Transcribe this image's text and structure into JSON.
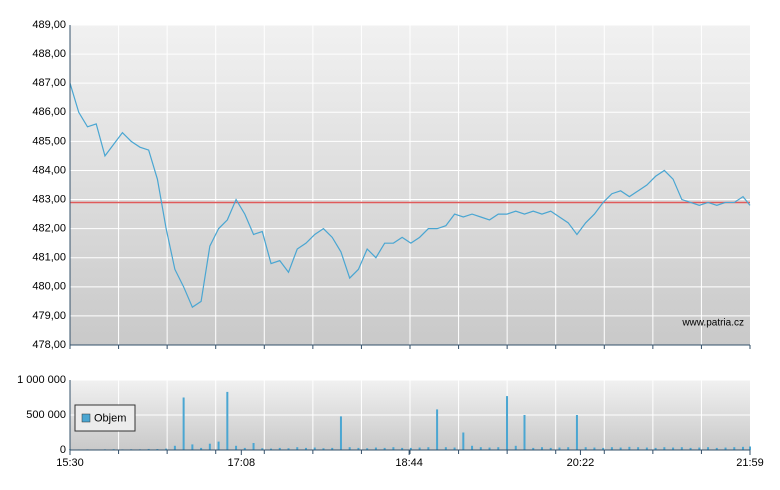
{
  "chart_data": [
    {
      "type": "line",
      "watermark": "www.patria.cz",
      "xlim": [
        "15:30",
        "21:59"
      ],
      "ylim": [
        478,
        489
      ],
      "yticks": [
        {
          "value": 478,
          "label": "478,00"
        },
        {
          "value": 479,
          "label": "479,00"
        },
        {
          "value": 480,
          "label": "480,00"
        },
        {
          "value": 481,
          "label": "481,00"
        },
        {
          "value": 482,
          "label": "482,00"
        },
        {
          "value": 483,
          "label": "483,00"
        },
        {
          "value": 484,
          "label": "484,00"
        },
        {
          "value": 485,
          "label": "485,00"
        },
        {
          "value": 486,
          "label": "486,00"
        },
        {
          "value": 487,
          "label": "487,00"
        },
        {
          "value": 488,
          "label": "488,00"
        },
        {
          "value": 489,
          "label": "489,00"
        }
      ],
      "grid": true,
      "reference_line": {
        "value": 482.9,
        "color": "#e05a5a"
      },
      "x": [
        "15:30",
        "15:35",
        "15:40",
        "15:45",
        "15:50",
        "15:55",
        "16:00",
        "16:05",
        "16:10",
        "16:15",
        "16:20",
        "16:25",
        "16:30",
        "16:35",
        "16:40",
        "16:45",
        "16:50",
        "16:55",
        "17:00",
        "17:05",
        "17:10",
        "17:15",
        "17:20",
        "17:25",
        "17:30",
        "17:35",
        "17:40",
        "17:45",
        "17:50",
        "17:55",
        "18:00",
        "18:05",
        "18:10",
        "18:15",
        "18:20",
        "18:25",
        "18:30",
        "18:35",
        "18:40",
        "18:45",
        "18:50",
        "18:55",
        "19:00",
        "19:05",
        "19:10",
        "19:15",
        "19:20",
        "19:25",
        "19:30",
        "19:35",
        "19:40",
        "19:45",
        "19:50",
        "19:55",
        "20:00",
        "20:05",
        "20:10",
        "20:15",
        "20:20",
        "20:25",
        "20:30",
        "20:35",
        "20:40",
        "20:45",
        "20:50",
        "20:55",
        "21:00",
        "21:05",
        "21:10",
        "21:15",
        "21:20",
        "21:25",
        "21:30",
        "21:35",
        "21:40",
        "21:45",
        "21:50",
        "21:55",
        "21:59"
      ],
      "series": [
        {
          "color": "#4aa6d2",
          "values": [
            487.0,
            486.0,
            485.5,
            485.6,
            484.5,
            484.9,
            485.3,
            485.0,
            484.8,
            484.7,
            483.7,
            482.0,
            480.6,
            480.0,
            479.3,
            479.5,
            481.4,
            482.0,
            482.3,
            483.0,
            482.5,
            481.8,
            481.9,
            480.8,
            480.9,
            480.5,
            481.3,
            481.5,
            481.8,
            482.0,
            481.7,
            481.2,
            480.3,
            480.6,
            481.3,
            481.0,
            481.5,
            481.5,
            481.7,
            481.5,
            481.7,
            482.0,
            482.0,
            482.1,
            482.5,
            482.4,
            482.5,
            482.4,
            482.3,
            482.5,
            482.5,
            482.6,
            482.5,
            482.6,
            482.5,
            482.6,
            482.4,
            482.2,
            481.8,
            482.2,
            482.5,
            482.9,
            483.2,
            483.3,
            483.1,
            483.3,
            483.5,
            483.8,
            484.0,
            483.7,
            483.0,
            482.9,
            482.8,
            482.9,
            482.8,
            482.9,
            482.9,
            483.1,
            482.8
          ]
        }
      ]
    },
    {
      "type": "bar",
      "xlim": [
        "15:30",
        "21:59"
      ],
      "xticks": [
        "15:30",
        "17:08",
        "18:44",
        "20:22",
        "21:59"
      ],
      "ylim": [
        0,
        1000000
      ],
      "yticks": [
        0,
        {
          "value": 500000,
          "label": "500 000"
        },
        {
          "value": 1000000,
          "label": "1 000 000"
        }
      ],
      "legend": "top-left",
      "x": [
        "15:30",
        "15:35",
        "15:40",
        "15:45",
        "15:50",
        "15:55",
        "16:00",
        "16:05",
        "16:10",
        "16:15",
        "16:20",
        "16:25",
        "16:30",
        "16:35",
        "16:40",
        "16:45",
        "16:50",
        "16:55",
        "17:00",
        "17:05",
        "17:10",
        "17:15",
        "17:20",
        "17:25",
        "17:30",
        "17:35",
        "17:40",
        "17:45",
        "17:50",
        "17:55",
        "18:00",
        "18:05",
        "18:10",
        "18:15",
        "18:20",
        "18:25",
        "18:30",
        "18:35",
        "18:40",
        "18:45",
        "18:50",
        "18:55",
        "19:00",
        "19:05",
        "19:10",
        "19:15",
        "19:20",
        "19:25",
        "19:30",
        "19:35",
        "19:40",
        "19:45",
        "19:50",
        "19:55",
        "20:00",
        "20:05",
        "20:10",
        "20:15",
        "20:20",
        "20:25",
        "20:30",
        "20:35",
        "20:40",
        "20:45",
        "20:50",
        "20:55",
        "21:00",
        "21:05",
        "21:10",
        "21:15",
        "21:20",
        "21:25",
        "21:30",
        "21:35",
        "21:40",
        "21:45",
        "21:50",
        "21:55",
        "21:59"
      ],
      "series": [
        {
          "name": "Objem",
          "color": "#4aa6d2",
          "values": [
            10000,
            8000,
            9000,
            7000,
            10000,
            12000,
            9000,
            11000,
            10000,
            15000,
            14000,
            20000,
            60000,
            750000,
            80000,
            30000,
            90000,
            120000,
            830000,
            60000,
            30000,
            100000,
            25000,
            20000,
            30000,
            25000,
            40000,
            30000,
            35000,
            25000,
            30000,
            480000,
            40000,
            30000,
            25000,
            35000,
            30000,
            40000,
            30000,
            30000,
            35000,
            40000,
            580000,
            40000,
            35000,
            250000,
            60000,
            40000,
            35000,
            40000,
            770000,
            60000,
            500000,
            30000,
            40000,
            30000,
            35000,
            40000,
            500000,
            40000,
            35000,
            30000,
            40000,
            35000,
            45000,
            40000,
            35000,
            30000,
            40000,
            35000,
            40000,
            30000,
            35000,
            40000,
            30000,
            35000,
            40000,
            45000,
            50000
          ]
        }
      ]
    }
  ]
}
